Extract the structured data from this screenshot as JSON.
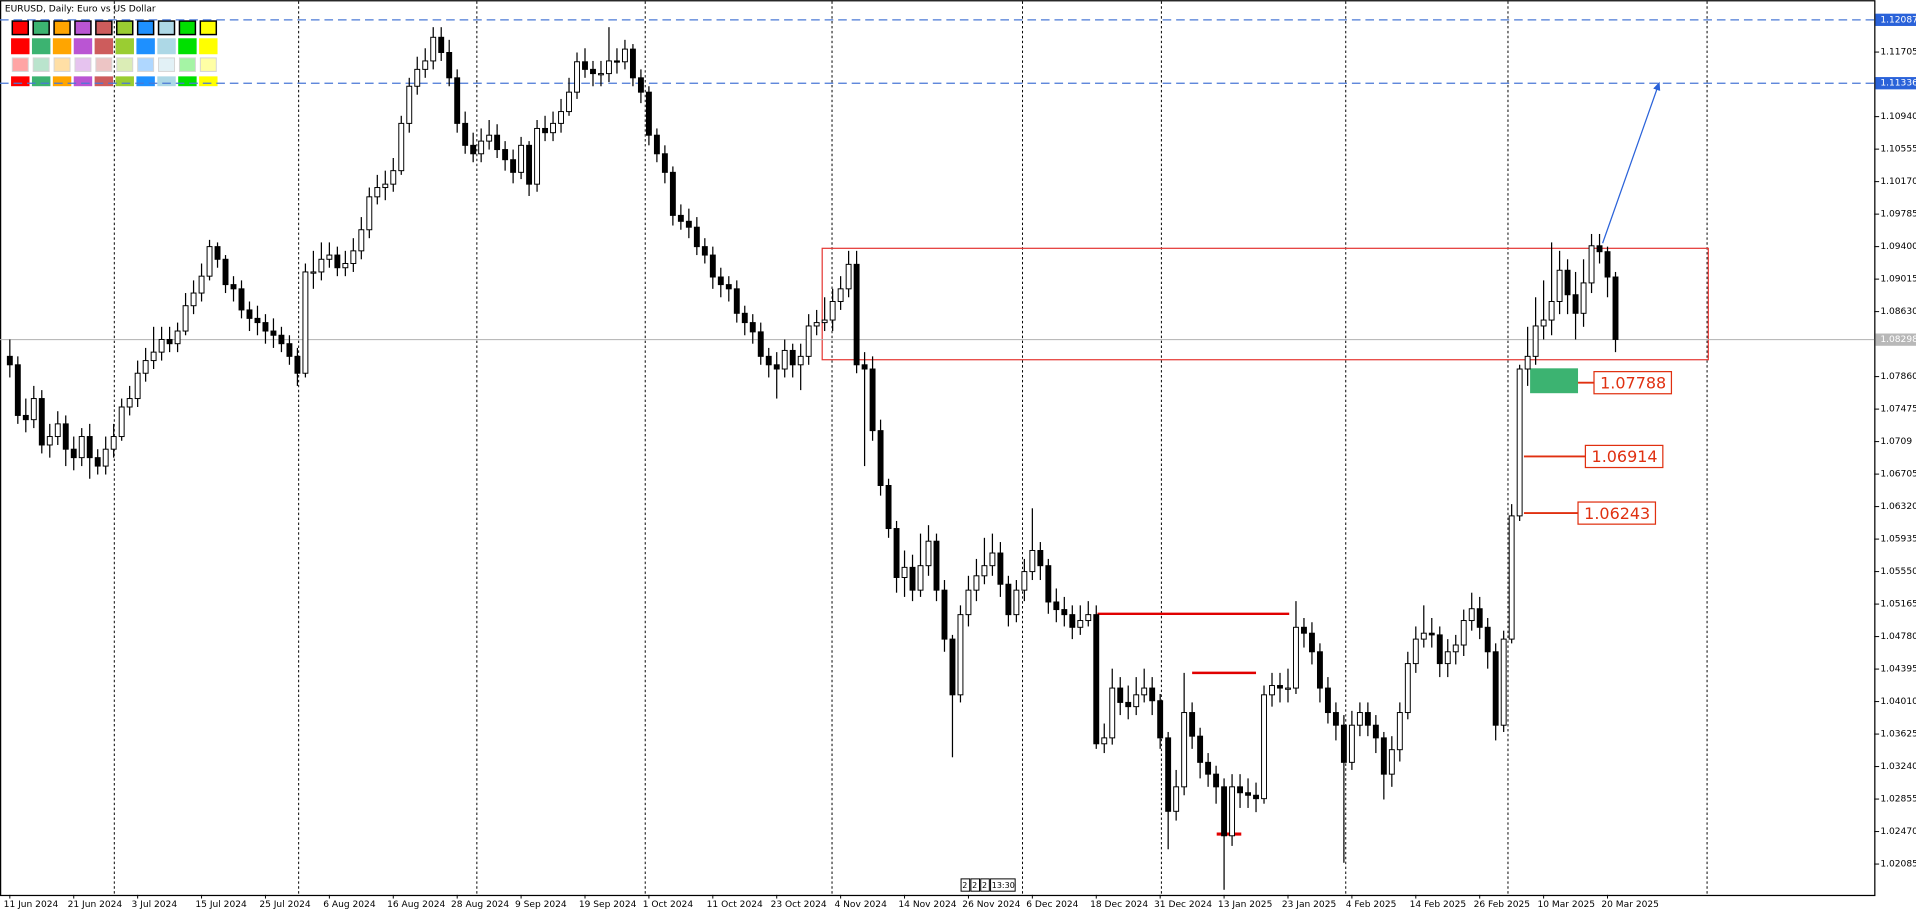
{
  "chart_data": {
    "type": "candlestick",
    "title": "EURUSD, Daily:  Euro vs US Dollar",
    "categories": [
      "11 Jun 2024",
      null,
      null,
      null,
      null,
      null,
      null,
      null,
      "21 Jun 2024",
      null,
      null,
      null,
      null,
      null,
      null,
      null,
      "3 Jul 2024",
      null,
      null,
      null,
      null,
      null,
      null,
      null,
      "15 Jul 2024",
      null,
      null,
      null,
      null,
      null,
      null,
      null,
      "25 Jul 2024",
      null,
      null,
      null,
      null,
      null,
      null,
      null,
      "6 Aug 2024",
      null,
      null,
      null,
      null,
      null,
      null,
      null,
      "16 Aug 2024",
      null,
      null,
      null,
      null,
      null,
      null,
      null,
      "28 Aug 2024",
      null,
      null,
      null,
      null,
      null,
      null,
      null,
      "9 Sep 2024",
      null,
      null,
      null,
      null,
      null,
      null,
      null,
      "19 Sep 2024",
      null,
      null,
      null,
      null,
      null,
      null,
      null,
      "1 Oct 2024",
      null,
      null,
      null,
      null,
      null,
      null,
      null,
      "11 Oct 2024",
      null,
      null,
      null,
      null,
      null,
      null,
      null,
      "23 Oct 2024",
      null,
      null,
      null,
      null,
      null,
      null,
      null,
      "4 Nov 2024",
      null,
      null,
      null,
      null,
      null,
      null,
      null,
      "14 Nov 2024",
      null,
      null,
      null,
      null,
      null,
      null,
      null,
      "26 Nov 2024",
      null,
      null,
      null,
      null,
      null,
      null,
      null,
      "6 Dec 2024",
      null,
      null,
      null,
      null,
      null,
      null,
      null,
      "18 Dec 2024",
      null,
      null,
      null,
      null,
      null,
      null,
      null,
      "31 Dec 2024",
      null,
      null,
      null,
      null,
      null,
      null,
      null,
      "13 Jan 2025",
      null,
      null,
      null,
      null,
      null,
      null,
      null,
      "23 Jan 2025",
      null,
      null,
      null,
      null,
      null,
      null,
      null,
      "4 Feb 2025",
      null,
      null,
      null,
      null,
      null,
      null,
      null,
      "14 Feb 2025",
      null,
      null,
      null,
      null,
      null,
      null,
      null,
      "26 Feb 2025",
      null,
      null,
      null,
      null,
      null,
      null,
      null,
      "10 Mar 2025",
      null,
      null,
      null,
      null,
      null,
      null,
      null,
      "20 Mar 2025",
      null
    ],
    "open": [
      1.081,
      1.08,
      1.074,
      1.0735,
      1.076,
      1.0705,
      1.0715,
      1.073,
      1.07,
      1.069,
      1.0715,
      1.069,
      1.068,
      1.07,
      1.0715,
      1.075,
      1.076,
      1.079,
      1.0805,
      1.0815,
      1.083,
      1.0825,
      1.084,
      1.087,
      1.0885,
      1.0905,
      1.094,
      1.0925,
      1.0895,
      1.089,
      1.0865,
      1.0855,
      1.085,
      1.084,
      1.0835,
      1.0825,
      1.081,
      1.079,
      1.091,
      1.091,
      1.0925,
      1.093,
      1.0915,
      1.092,
      1.0935,
      1.096,
      1.0999,
      1.101,
      1.1014,
      1.103,
      1.1086,
      1.113,
      1.115,
      1.116,
      1.1188,
      1.117,
      1.114,
      1.1086,
      1.106,
      1.105,
      1.1065,
      1.1072,
      1.1055,
      1.1043,
      1.1028,
      1.106,
      1.1014,
      1.108,
      1.1075,
      1.1086,
      1.11,
      1.1123,
      1.1159,
      1.115,
      1.1145,
      1.1145,
      1.116,
      1.1159,
      1.1174,
      1.114,
      1.1123,
      1.1072,
      1.105,
      1.1028,
      1.0977,
      1.097,
      1.0963,
      1.094,
      1.093,
      1.0904,
      1.0895,
      1.089,
      1.0861,
      1.085,
      1.0839,
      1.081,
      1.08,
      1.0795,
      1.0817,
      1.08,
      1.081,
      1.0846,
      1.085,
      1.0853,
      1.0875,
      1.089,
      1.0919,
      1.08,
      1.0795,
      1.0722,
      1.0657,
      1.0606,
      1.0548,
      1.056,
      1.0533,
      1.0562,
      1.0591,
      1.0533,
      1.0475,
      1.0409,
      1.0504,
      1.0533,
      1.055,
      1.0562,
      1.0577,
      1.054,
      1.0504,
      1.0533,
      1.0555,
      1.058,
      1.0562,
      1.0519,
      1.051,
      1.0504,
      1.0489,
      1.0497,
      1.0504,
      1.0351,
      1.0358,
      1.0417,
      1.04,
      1.0395,
      1.0409,
      1.0417,
      1.0402,
      1.0358,
      1.0271,
      1.03,
      1.0388,
      1.036,
      1.0329,
      1.0315,
      1.03,
      1.0242,
      1.03,
      1.0293,
      1.029,
      1.0286,
      1.0409,
      1.042,
      1.0417,
      1.0417,
      1.0489,
      1.0482,
      1.046,
      1.0417,
      1.0388,
      1.0373,
      1.0329,
      1.0373,
      1.0388,
      1.0373,
      1.0358,
      1.0315,
      1.0344,
      1.0388,
      1.0446,
      1.0475,
      1.0482,
      1.048,
      1.0446,
      1.046,
      1.0468,
      1.0497,
      1.0511,
      1.0489,
      1.046,
      1.0373,
      1.0475,
      1.0621,
      1.0795,
      1.081,
      1.0846,
      1.0853,
      1.0875,
      1.0912,
      1.0883,
      1.0861,
      1.0897,
      1.0941,
      1.0934,
      1.0904
    ],
    "high": [
      1.083,
      1.081,
      1.076,
      1.0775,
      1.077,
      1.073,
      1.0745,
      1.074,
      1.0715,
      1.0725,
      1.073,
      1.07,
      1.0715,
      1.073,
      1.076,
      1.0775,
      1.0805,
      1.082,
      1.0845,
      1.0845,
      1.0845,
      1.085,
      1.0885,
      1.09,
      1.092,
      1.0948,
      1.0945,
      1.093,
      1.0905,
      1.09,
      1.0875,
      1.087,
      1.086,
      1.0855,
      1.0845,
      1.0835,
      1.082,
      1.092,
      1.0935,
      1.0945,
      1.0945,
      1.094,
      1.0935,
      1.095,
      1.0975,
      1.101,
      1.1025,
      1.103,
      1.1045,
      1.1095,
      1.114,
      1.1165,
      1.1175,
      1.12,
      1.12,
      1.1185,
      1.115,
      1.11,
      1.1075,
      1.108,
      1.109,
      1.1085,
      1.1065,
      1.1055,
      1.107,
      1.1065,
      1.109,
      1.1095,
      1.11,
      1.1115,
      1.114,
      1.117,
      1.1175,
      1.116,
      1.116,
      1.12,
      1.1175,
      1.1185,
      1.118,
      1.115,
      1.113,
      1.108,
      1.106,
      1.1035,
      1.099,
      1.0985,
      1.0975,
      1.095,
      1.094,
      1.0915,
      1.0905,
      1.09,
      1.087,
      1.086,
      1.085,
      1.082,
      1.0815,
      1.083,
      1.0825,
      1.0825,
      1.086,
      1.0865,
      1.088,
      1.089,
      1.0905,
      1.0935,
      1.0935,
      1.0815,
      1.081,
      1.0735,
      1.0665,
      1.0615,
      1.058,
      1.0575,
      1.06,
      1.061,
      1.06,
      1.0545,
      1.048,
      1.0515,
      1.055,
      1.057,
      1.0595,
      1.06,
      1.059,
      1.055,
      1.0545,
      1.057,
      1.063,
      1.059,
      1.057,
      1.0535,
      1.0525,
      1.0515,
      1.0515,
      1.052,
      1.0515,
      1.0375,
      1.044,
      1.043,
      1.042,
      1.043,
      1.044,
      1.043,
      1.041,
      1.0365,
      1.032,
      1.0435,
      1.04,
      1.037,
      1.034,
      1.0325,
      1.031,
      1.0315,
      1.0315,
      1.031,
      1.0305,
      1.042,
      1.0435,
      1.0435,
      1.044,
      1.052,
      1.05,
      1.0495,
      1.047,
      1.043,
      1.04,
      1.0385,
      1.039,
      1.04,
      1.04,
      1.0385,
      1.0365,
      1.036,
      1.04,
      1.046,
      1.049,
      1.0515,
      1.05,
      1.049,
      1.0475,
      1.048,
      1.051,
      1.053,
      1.0525,
      1.05,
      1.047,
      1.0485,
      1.0635,
      1.08,
      1.0845,
      1.088,
      1.09,
      1.0945,
      1.0935,
      1.0925,
      1.091,
      1.0925,
      1.0955,
      1.0955,
      1.094,
      1.091
    ],
    "low": [
      1.0785,
      1.073,
      1.072,
      1.0725,
      1.0695,
      1.069,
      1.0705,
      1.068,
      1.0675,
      1.068,
      1.0665,
      1.067,
      1.067,
      1.069,
      1.071,
      1.074,
      1.075,
      1.078,
      1.0795,
      1.0805,
      1.0815,
      1.0815,
      1.0835,
      1.086,
      1.0875,
      1.09,
      1.0915,
      1.0885,
      1.0875,
      1.0855,
      1.084,
      1.0835,
      1.0825,
      1.082,
      1.0815,
      1.08,
      1.0775,
      1.0785,
      1.089,
      1.09,
      1.0915,
      1.0905,
      1.0905,
      1.091,
      1.0925,
      1.095,
      1.099,
      1.0995,
      1.1005,
      1.1025,
      1.1075,
      1.112,
      1.114,
      1.115,
      1.116,
      1.113,
      1.1075,
      1.105,
      1.104,
      1.104,
      1.1055,
      1.1045,
      1.103,
      1.1015,
      1.102,
      1.1,
      1.1005,
      1.1065,
      1.1065,
      1.1075,
      1.1095,
      1.1115,
      1.114,
      1.113,
      1.113,
      1.1135,
      1.1145,
      1.115,
      1.113,
      1.111,
      1.106,
      1.104,
      1.1015,
      1.0965,
      1.096,
      1.095,
      1.093,
      1.092,
      1.089,
      1.088,
      1.0875,
      1.085,
      1.0835,
      1.0825,
      1.08,
      1.0785,
      1.076,
      1.0785,
      1.0785,
      1.077,
      1.08,
      1.0835,
      1.084,
      1.084,
      1.0865,
      1.088,
      1.079,
      1.068,
      1.071,
      1.0645,
      1.0595,
      1.053,
      1.0525,
      1.052,
      1.0525,
      1.055,
      1.052,
      1.046,
      1.0335,
      1.04,
      1.049,
      1.052,
      1.054,
      1.055,
      1.0525,
      1.049,
      1.0495,
      1.052,
      1.0545,
      1.0545,
      1.0505,
      1.0495,
      1.049,
      1.0475,
      1.048,
      1.049,
      1.0345,
      1.034,
      1.035,
      1.0385,
      1.038,
      1.0385,
      1.04,
      1.0385,
      1.0345,
      1.0226,
      1.026,
      1.029,
      1.0345,
      1.031,
      1.03,
      1.028,
      1.0178,
      1.023,
      1.0275,
      1.0275,
      1.027,
      1.028,
      1.0395,
      1.04,
      1.04,
      1.041,
      1.0465,
      1.0445,
      1.04,
      1.0375,
      1.0355,
      1.021,
      1.032,
      1.036,
      1.036,
      1.034,
      1.0285,
      1.03,
      1.033,
      1.038,
      1.0435,
      1.0465,
      1.0465,
      1.043,
      1.043,
      1.0445,
      1.0455,
      1.0485,
      1.0475,
      1.044,
      1.0355,
      1.0365,
      1.047,
      1.0615,
      1.0775,
      1.08,
      1.083,
      1.0835,
      1.086,
      1.086,
      1.083,
      1.0845,
      1.0885,
      1.092,
      1.088,
      1.0815
    ],
    "close": [
      1.08,
      1.074,
      1.0735,
      1.076,
      1.0705,
      1.0715,
      1.073,
      1.07,
      1.069,
      1.0715,
      1.069,
      1.068,
      1.07,
      1.0715,
      1.075,
      1.076,
      1.079,
      1.0805,
      1.0815,
      1.083,
      1.0825,
      1.084,
      1.087,
      1.0885,
      1.0905,
      1.094,
      1.0925,
      1.0895,
      1.089,
      1.0865,
      1.0855,
      1.085,
      1.084,
      1.0835,
      1.0825,
      1.081,
      1.079,
      1.091,
      1.091,
      1.0925,
      1.093,
      1.0915,
      1.092,
      1.0935,
      1.096,
      1.0999,
      1.101,
      1.1014,
      1.103,
      1.1086,
      1.113,
      1.115,
      1.116,
      1.1188,
      1.117,
      1.114,
      1.1086,
      1.106,
      1.105,
      1.1065,
      1.1072,
      1.1055,
      1.1043,
      1.1028,
      1.106,
      1.1014,
      1.108,
      1.1075,
      1.1086,
      1.11,
      1.1123,
      1.1159,
      1.115,
      1.1145,
      1.1145,
      1.116,
      1.1159,
      1.1174,
      1.114,
      1.1123,
      1.1072,
      1.105,
      1.1028,
      1.0977,
      1.097,
      1.0963,
      1.094,
      1.093,
      1.0904,
      1.0895,
      1.089,
      1.0861,
      1.085,
      1.0839,
      1.081,
      1.08,
      1.0795,
      1.0817,
      1.08,
      1.081,
      1.0846,
      1.085,
      1.0853,
      1.0875,
      1.089,
      1.0919,
      1.08,
      1.0795,
      1.0722,
      1.0657,
      1.0606,
      1.0548,
      1.056,
      1.0533,
      1.0562,
      1.0591,
      1.0533,
      1.0475,
      1.0409,
      1.0504,
      1.0533,
      1.055,
      1.0562,
      1.0577,
      1.054,
      1.0504,
      1.0533,
      1.0555,
      1.058,
      1.0562,
      1.0519,
      1.051,
      1.0504,
      1.0489,
      1.0497,
      1.0504,
      1.0351,
      1.0358,
      1.0417,
      1.04,
      1.0395,
      1.0409,
      1.0417,
      1.0402,
      1.0358,
      1.0271,
      1.03,
      1.0388,
      1.036,
      1.0329,
      1.0315,
      1.03,
      1.0242,
      1.03,
      1.0293,
      1.029,
      1.0286,
      1.0409,
      1.042,
      1.0417,
      1.0417,
      1.0489,
      1.0482,
      1.046,
      1.0417,
      1.0388,
      1.0373,
      1.0329,
      1.0373,
      1.0388,
      1.0373,
      1.0358,
      1.0315,
      1.0344,
      1.0388,
      1.0446,
      1.0475,
      1.0482,
      1.048,
      1.0446,
      1.046,
      1.0468,
      1.0497,
      1.0511,
      1.0489,
      1.046,
      1.0373,
      1.0475,
      1.0621,
      1.0795,
      1.081,
      1.0846,
      1.0853,
      1.0875,
      1.0912,
      1.0883,
      1.0861,
      1.0897,
      1.0941,
      1.0934,
      1.0904,
      1.083
    ],
    "up_color": "#ffffff",
    "down_color": "#000000",
    "ylim": [
      1.0172,
      1.1232
    ],
    "yticks": [
      1.11705,
      {
        "value": 1.1094,
        "label": "1.10940"
      },
      1.10555,
      {
        "value": 1.1017,
        "label": "1.10170"
      },
      1.09785,
      {
        "value": 1.094,
        "label": "1.09400"
      },
      1.09015,
      {
        "value": 1.0863,
        "label": "1.08630"
      },
      {
        "value": 1.0786,
        "label": "1.07860"
      },
      1.07475,
      1.0709,
      1.06705,
      {
        "value": 1.0632,
        "label": "1.06320"
      },
      1.05935,
      {
        "value": 1.0555,
        "label": "1.05550"
      },
      1.05165,
      {
        "value": 1.0478,
        "label": "1.04780"
      },
      1.04395,
      {
        "value": 1.0401,
        "label": "1.04010"
      },
      1.03625,
      {
        "value": 1.0324,
        "label": "1.03240"
      },
      1.02855,
      {
        "value": 1.0247,
        "label": "1.02470"
      },
      1.02085
    ],
    "horizontal_levels": [
      1.12087,
      1.11336
    ],
    "current_price": 1.08298,
    "range_box": [
      1.0806,
      1.0938
    ],
    "red_lines": [
      1.0505,
      1.0435,
      1.0244
    ],
    "green_zone": [
      1.0778,
      1.079
    ],
    "levels": [
      1.07788,
      1.06914,
      1.06243
    ],
    "arrow": [
      1.0944,
      1.1134
    ]
  },
  "toolbar": [
    "2",
    "2",
    "2",
    "13:30"
  ]
}
